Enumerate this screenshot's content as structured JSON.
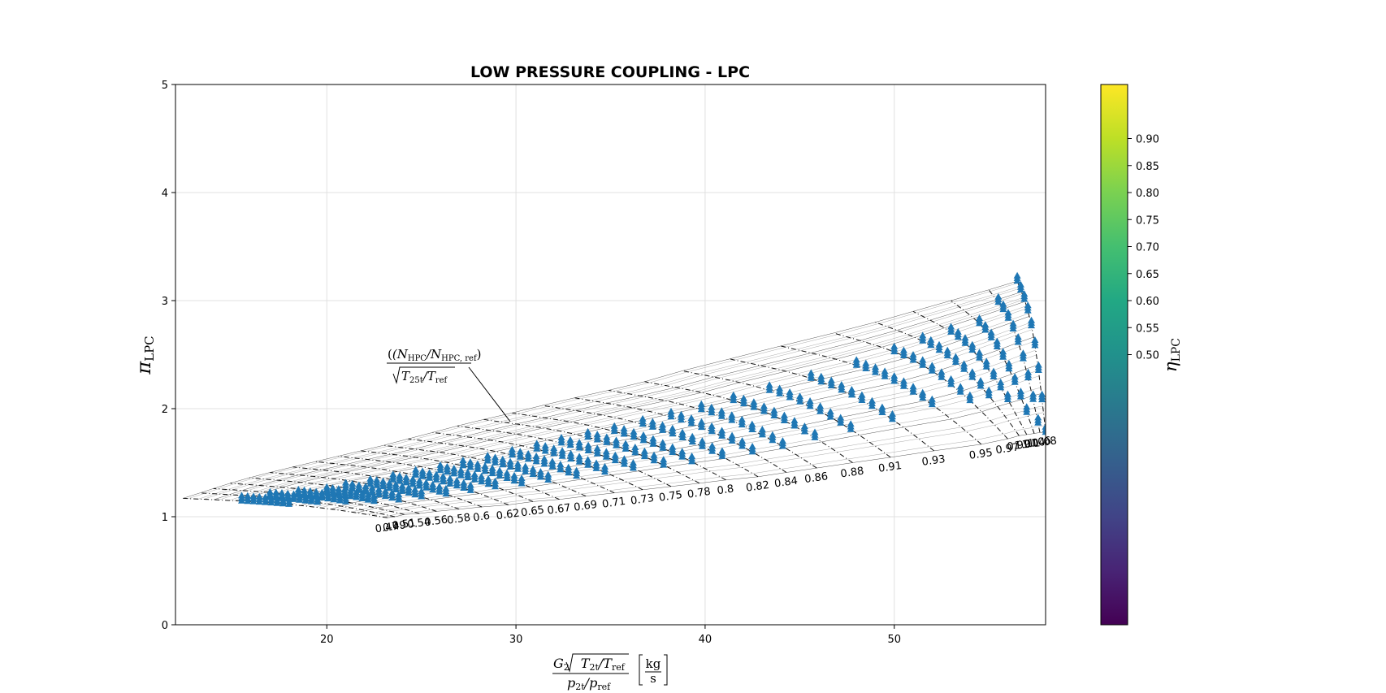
{
  "chart_data": {
    "type": "scatter",
    "title": "LOW PRESSURE COUPLING - LPC",
    "xlabel": {
      "num_prefix": "G",
      "num_sub": "2",
      "num_root": "T",
      "num_root_sub1": "2t",
      "num_root_mid": "/T",
      "num_root_sub2": "ref",
      "den_p1": "p",
      "den_sub1": "2t",
      "den_mid": "/p",
      "den_sub2": "ref",
      "unit_num": "kg",
      "unit_den": "s"
    },
    "ylabel": {
      "main": "π",
      "sub": "LPC"
    },
    "xlim": [
      12,
      58
    ],
    "ylim": [
      0,
      5
    ],
    "xticks": [
      "20",
      "30",
      "40",
      "50"
    ],
    "xtick_values": [
      20,
      30,
      40,
      50
    ],
    "yticks": [
      "0",
      "1",
      "2",
      "3",
      "4",
      "5"
    ],
    "ytick_values": [
      0,
      1,
      2,
      3,
      4,
      5
    ],
    "grid": true,
    "marker_color": "#1f77b4",
    "annotation": {
      "num_open": "(N",
      "num_sub1": "HPC",
      "num_mid": "/N",
      "num_sub2": "HPC, ref",
      "num_close": ")",
      "den_root": "T",
      "den_sub1": "25t",
      "den_mid": "/T",
      "den_sub2": "ref",
      "arrow_to": [
        29.7,
        1.88
      ]
    },
    "speed_lines": [
      {
        "label": "0.47",
        "choke": [
          23.2,
          0.99
        ],
        "surge": [
          12.4,
          1.17
        ],
        "op_x0": 15.5,
        "op_x1": 18.0
      },
      {
        "label": "0.49",
        "choke": [
          23.6,
          1.0
        ],
        "surge": [
          13.3,
          1.22
        ],
        "op_x0": 17.0,
        "op_x1": 19.5
      },
      {
        "label": "0.51",
        "choke": [
          24.1,
          1.02
        ],
        "surge": [
          14.0,
          1.26
        ],
        "op_x0": 18.5,
        "op_x1": 21.0
      },
      {
        "label": "0.54",
        "choke": [
          24.9,
          1.03
        ],
        "surge": [
          14.9,
          1.31
        ],
        "op_x0": 20.0,
        "op_x1": 22.5
      },
      {
        "label": "0.56",
        "choke": [
          25.8,
          1.05
        ],
        "surge": [
          15.9,
          1.36
        ],
        "op_x0": 21.0,
        "op_x1": 23.8
      },
      {
        "label": "0.58",
        "choke": [
          27.0,
          1.07
        ],
        "surge": [
          17.0,
          1.41
        ],
        "op_x0": 22.3,
        "op_x1": 25.0
      },
      {
        "label": "0.6",
        "choke": [
          28.2,
          1.09
        ],
        "surge": [
          18.2,
          1.46
        ],
        "op_x0": 23.5,
        "op_x1": 26.3
      },
      {
        "label": "0.62",
        "choke": [
          29.6,
          1.11
        ],
        "surge": [
          19.4,
          1.51
        ],
        "op_x0": 24.7,
        "op_x1": 27.6
      },
      {
        "label": "0.65",
        "choke": [
          30.9,
          1.14
        ],
        "surge": [
          20.6,
          1.56
        ],
        "op_x0": 26.0,
        "op_x1": 28.9
      },
      {
        "label": "0.67",
        "choke": [
          32.3,
          1.16
        ],
        "surge": [
          21.8,
          1.61
        ],
        "op_x0": 27.2,
        "op_x1": 30.3
      },
      {
        "label": "0.69",
        "choke": [
          33.7,
          1.19
        ],
        "surge": [
          23.0,
          1.66
        ],
        "op_x0": 28.5,
        "op_x1": 31.7
      },
      {
        "label": "0.71",
        "choke": [
          35.2,
          1.22
        ],
        "surge": [
          24.3,
          1.72
        ],
        "op_x0": 29.8,
        "op_x1": 33.2
      },
      {
        "label": "0.73",
        "choke": [
          36.7,
          1.25
        ],
        "surge": [
          25.6,
          1.78
        ],
        "op_x0": 31.1,
        "op_x1": 34.7
      },
      {
        "label": "0.75",
        "choke": [
          38.2,
          1.28
        ],
        "surge": [
          26.9,
          1.84
        ],
        "op_x0": 32.4,
        "op_x1": 36.2
      },
      {
        "label": "0.78",
        "choke": [
          39.7,
          1.31
        ],
        "surge": [
          28.3,
          1.9
        ],
        "op_x0": 33.8,
        "op_x1": 37.8
      },
      {
        "label": "0.8",
        "choke": [
          41.1,
          1.34
        ],
        "surge": [
          29.8,
          1.96
        ],
        "op_x0": 35.2,
        "op_x1": 39.3
      },
      {
        "label": "0.82",
        "choke": [
          42.8,
          1.37
        ],
        "surge": [
          31.4,
          2.03
        ],
        "op_x0": 36.7,
        "op_x1": 40.9
      },
      {
        "label": "0.84",
        "choke": [
          44.3,
          1.41
        ],
        "surge": [
          33.1,
          2.1
        ],
        "op_x0": 38.2,
        "op_x1": 42.5
      },
      {
        "label": "0.86",
        "choke": [
          45.9,
          1.45
        ],
        "surge": [
          34.9,
          2.17
        ],
        "op_x0": 39.8,
        "op_x1": 44.1
      },
      {
        "label": "0.88",
        "choke": [
          47.8,
          1.5
        ],
        "surge": [
          36.8,
          2.25
        ],
        "op_x0": 41.5,
        "op_x1": 45.8
      },
      {
        "label": "0.91",
        "choke": [
          49.8,
          1.55
        ],
        "surge": [
          38.8,
          2.35
        ],
        "op_x0": 43.4,
        "op_x1": 47.7
      },
      {
        "label": "0.93",
        "choke": [
          52.1,
          1.61
        ],
        "surge": [
          41.3,
          2.46
        ],
        "op_x0": 45.6,
        "op_x1": 49.9
      },
      {
        "label": "0.95",
        "choke": [
          54.6,
          1.67
        ],
        "surge": [
          44.0,
          2.58
        ],
        "op_x0": 48.0,
        "op_x1": 52.0
      },
      {
        "label": "0.97",
        "choke": [
          56.0,
          1.72
        ],
        "surge": [
          46.8,
          2.7
        ],
        "op_x0": 50.0,
        "op_x1": 54.0
      },
      {
        "label": "0.99",
        "choke": [
          56.6,
          1.75
        ],
        "surge": [
          49.0,
          2.8
        ],
        "op_x0": 51.5,
        "op_x1": 55.0
      },
      {
        "label": "1.01",
        "choke": [
          57.0,
          1.76
        ],
        "surge": [
          51.0,
          2.9
        ],
        "op_x0": 53.0,
        "op_x1": 56.0
      },
      {
        "label": "1.04",
        "choke": [
          57.4,
          1.77
        ],
        "surge": [
          53.0,
          3.0
        ],
        "op_x0": 54.5,
        "op_x1": 57.0
      },
      {
        "label": "1.06",
        "choke": [
          57.7,
          1.78
        ],
        "surge": [
          55.0,
          3.1
        ],
        "op_x0": 55.5,
        "op_x1": 57.6
      },
      {
        "label": "1.08",
        "choke": [
          58.0,
          1.78
        ],
        "surge": [
          56.5,
          3.18
        ],
        "op_x0": 56.5,
        "op_x1": 58.0
      }
    ],
    "colorbar": {
      "label_main": "η",
      "label_sub": "LPC",
      "range": [
        0.0,
        1.0
      ],
      "colors": [
        "#440154",
        "#482475",
        "#414487",
        "#355f8d",
        "#2a788e",
        "#21918c",
        "#22a884",
        "#44bf70",
        "#7ad151",
        "#bddf26",
        "#fde725"
      ],
      "ticks": [
        "0.50",
        "0.55",
        "0.60",
        "0.65",
        "0.70",
        "0.75",
        "0.80",
        "0.85",
        "0.90"
      ],
      "tick_values": [
        0.5,
        0.55,
        0.6,
        0.65,
        0.7,
        0.75,
        0.8,
        0.85,
        0.9
      ]
    }
  }
}
